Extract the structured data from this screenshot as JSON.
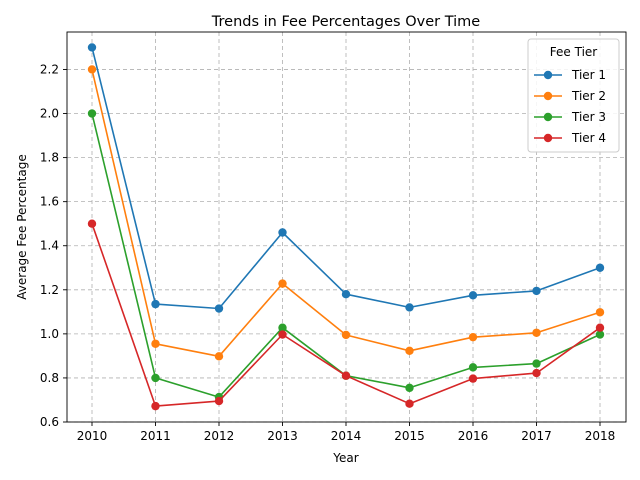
{
  "chart_data": {
    "type": "line",
    "title": "Trends in Fee Percentages Over Time",
    "xlabel": "Year",
    "ylabel": "Average Fee Percentage",
    "x": [
      2010,
      2011,
      2012,
      2013,
      2014,
      2015,
      2016,
      2017,
      2018
    ],
    "ylim": [
      0.6,
      2.37
    ],
    "yticks": [
      "0.6",
      "0.8",
      "1.0",
      "1.2",
      "1.4",
      "1.6",
      "1.8",
      "2.0",
      "2.2"
    ],
    "grid": true,
    "legend": {
      "title": "Fee Tier",
      "placement": "top-right"
    },
    "series": [
      {
        "name": "Tier 1",
        "color": "#1f77b4",
        "values": [
          2.3,
          1.135,
          1.115,
          1.46,
          1.18,
          1.12,
          1.175,
          1.195,
          1.3
        ]
      },
      {
        "name": "Tier 2",
        "color": "#ff7f0e",
        "values": [
          2.2,
          0.955,
          0.898,
          1.228,
          0.995,
          0.923,
          0.985,
          1.005,
          1.098
        ]
      },
      {
        "name": "Tier 3",
        "color": "#2ca02c",
        "values": [
          2.0,
          0.8,
          0.713,
          1.028,
          0.81,
          0.755,
          0.848,
          0.865,
          0.997
        ]
      },
      {
        "name": "Tier 4",
        "color": "#d62728",
        "values": [
          1.5,
          0.672,
          0.695,
          0.997,
          0.81,
          0.683,
          0.797,
          0.822,
          1.028
        ]
      }
    ]
  }
}
